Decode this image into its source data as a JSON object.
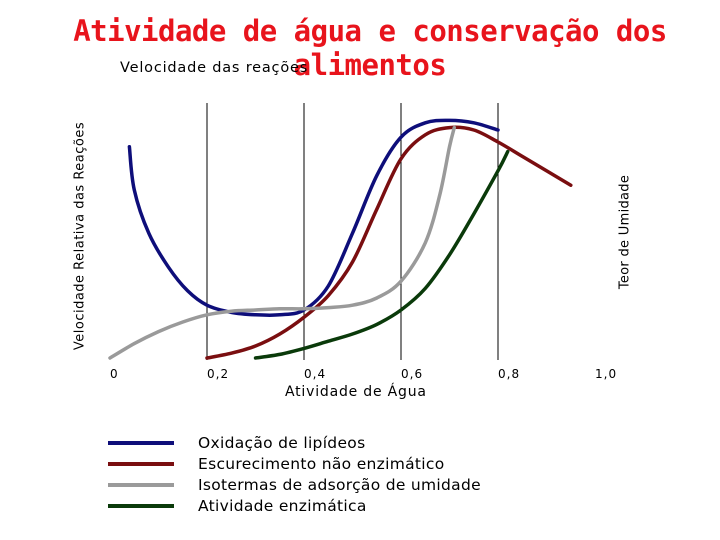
{
  "chart_data": {
    "type": "line",
    "title": "Atividade de água e conservação dos alimentos",
    "subtitle": "Velocidade das reações",
    "xlabel": "Atividade de Água",
    "ylabel": "Velocidade Relativa das Reações",
    "ylabel_right": "Teor de Umidade",
    "xlim": [
      0,
      1.0
    ],
    "ylim": [
      0,
      100
    ],
    "x_ticks": [
      0,
      0.2,
      0.4,
      0.6,
      0.8,
      1.0
    ],
    "x_tick_labels": [
      "0",
      "0,2",
      "0,4",
      "0,6",
      "0,8",
      "1,0"
    ],
    "vertical_grid": [
      0.2,
      0.4,
      0.6,
      0.8
    ],
    "legend_position": "bottom",
    "series": [
      {
        "name": "Oxidação de lipídeos",
        "color": "#0e0e7a",
        "x": [
          0.04,
          0.05,
          0.08,
          0.12,
          0.16,
          0.2,
          0.25,
          0.3,
          0.35,
          0.4,
          0.45,
          0.5,
          0.55,
          0.6,
          0.65,
          0.7,
          0.75,
          0.8
        ],
        "y": [
          88,
          70,
          52,
          38,
          28,
          22,
          19,
          18,
          18,
          20,
          30,
          52,
          76,
          92,
          98,
          99,
          98,
          95
        ]
      },
      {
        "name": "Escurecimento não enzimático",
        "color": "#7a0e10",
        "x": [
          0.2,
          0.25,
          0.3,
          0.35,
          0.4,
          0.45,
          0.5,
          0.55,
          0.6,
          0.65,
          0.7,
          0.75,
          0.8,
          0.85,
          0.9,
          0.95
        ],
        "y": [
          0,
          2,
          5,
          10,
          17,
          26,
          40,
          62,
          83,
          93,
          96,
          95,
          90,
          84,
          78,
          72
        ]
      },
      {
        "name": "Isotermas de adsorção de umidade",
        "color": "#9a9a9a",
        "x": [
          0.0,
          0.05,
          0.1,
          0.15,
          0.2,
          0.25,
          0.3,
          0.35,
          0.4,
          0.45,
          0.5,
          0.55,
          0.6,
          0.65,
          0.68,
          0.7,
          0.71
        ],
        "y": [
          0,
          6,
          11,
          15,
          18,
          19.5,
          20,
          20.5,
          20.5,
          21,
          22,
          25,
          32,
          48,
          68,
          88,
          96
        ]
      },
      {
        "name": "Atividade enzimática",
        "color": "#0a3a0a",
        "x": [
          0.3,
          0.35,
          0.4,
          0.45,
          0.5,
          0.55,
          0.6,
          0.65,
          0.7,
          0.75,
          0.8,
          0.82
        ],
        "y": [
          0,
          1.5,
          4,
          7,
          10,
          14,
          20,
          29,
          43,
          60,
          78,
          86
        ]
      }
    ]
  }
}
